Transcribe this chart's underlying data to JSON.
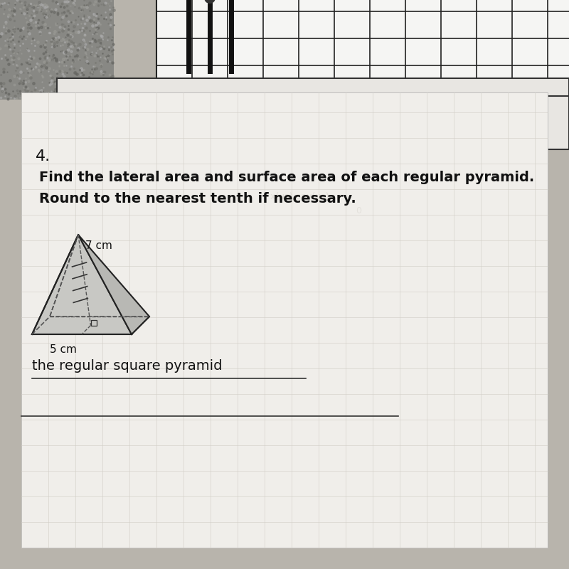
{
  "bg_color": "#b8b4ac",
  "paper_main_color": "#f0eeea",
  "paper_grid_color": "#e8e6e0",
  "grid_line_color": "#d0cdc6",
  "grid_line_color2": "#c8c5be",
  "number_label": "4.",
  "title_line1": "Find the lateral area and surface area of each regular pyramid.",
  "title_line2": "Round to the nearest tenth if necessary.",
  "pyramid_label_slant": "7 cm",
  "pyramid_label_base": "5 cm",
  "description": "the regular square pyramid",
  "title_fontsize": 14,
  "desc_fontsize": 14,
  "text_color": "#111111",
  "pyramid_face_front": "#c8c8c4",
  "pyramid_face_right": "#b8b8b4",
  "pyramid_face_left": "#d4d4d0",
  "pyramid_edge_color": "#222222",
  "pyramid_dash_color": "#555555"
}
